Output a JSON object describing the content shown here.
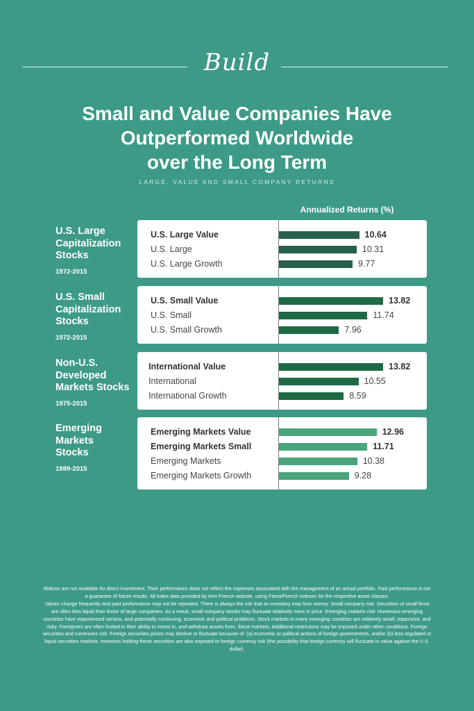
{
  "brand": "Build",
  "title_lines": [
    "Small and Value Companies Have",
    "Outperformed Worldwide",
    "over the Long Term"
  ],
  "subtitle": "LARGE, VALUE AND SMALL COMPANY RETURNS",
  "colors": {
    "background": "#3d9a87",
    "us_bar": "#27604f",
    "intl_bar": "#1d6a44",
    "em_bar": "#4aa47c"
  },
  "chart_data": {
    "type": "bar",
    "orientation": "horizontal",
    "value_label": "Annualized Returns (%)",
    "groups": [
      {
        "title_lines": [
          "U.S. Large",
          "Capitalization",
          "Stocks"
        ],
        "years": "1972-2015",
        "color_key": "us_bar",
        "categories": [
          "U.S. Large Value",
          "U.S. Large",
          "U.S. Large Growth"
        ],
        "values": [
          10.64,
          10.31,
          9.77
        ],
        "bold": [
          true,
          false,
          false
        ]
      },
      {
        "title_lines": [
          "U.S. Small",
          "Capitalization",
          "Stocks"
        ],
        "years": "1972-2015",
        "color_key": "intl_bar",
        "categories": [
          "U.S. Small Value",
          "U.S. Small",
          "U.S. Small Growth"
        ],
        "values": [
          13.82,
          11.74,
          7.96
        ],
        "bold": [
          true,
          false,
          false
        ]
      },
      {
        "title_lines": [
          "Non-U.S.",
          "Developed",
          "Markets Stocks"
        ],
        "years": "1975-2015",
        "color_key": "intl_bar",
        "categories": [
          "International Value",
          "International",
          "International Growth"
        ],
        "values": [
          13.82,
          10.55,
          8.59
        ],
        "bold": [
          true,
          false,
          false
        ]
      },
      {
        "title_lines": [
          "Emerging",
          "Markets",
          "Stocks"
        ],
        "years": "1989-2015",
        "color_key": "em_bar",
        "categories": [
          "Emerging Markets Value",
          "Emerging Markets Small",
          "Emerging Markets",
          "Emerging Markets Growth"
        ],
        "values": [
          12.96,
          11.71,
          10.38,
          9.28
        ],
        "bold": [
          true,
          true,
          false,
          false
        ]
      }
    ]
  },
  "footnotes": [
    "INdices are not available for direct investment. Their performance does not reflect the expenses associated with the management of an actual portfolio. Past performance is not a guarantee of future results. All index data provided by Ken French website, using Fama/French indexes for the respective asset classes.",
    "Values change frequently and past performance may not be repeated. There is always the risk that an investory may lose money. Small company risk: Securities of small firms are often less liquid than those of large companies. As a result, small company stocks may fluctuate relatively more in price. Emerging markets risk: Numerous emerging countries have experienced serious, and potentially continuing, economic and political problems. Stock markets in many emerging countries are relatively small, expensive, and risky. Foreigners are often limited in their ability to invest in, and withdraw assets from, these markets. Additional restrictions may be imposed under other conditions. Foreign securities and currencies risk: Foreign securities prices may decline or fluctuate because of: (a) economic or political actions of foreign governments, and/or (b) less regulated or liquid securities markets. Investors holding these securities are also exposed to foreign currency risk (the possibility that foreign currency will fluctuate in value against the U.S. dollar)."
  ]
}
